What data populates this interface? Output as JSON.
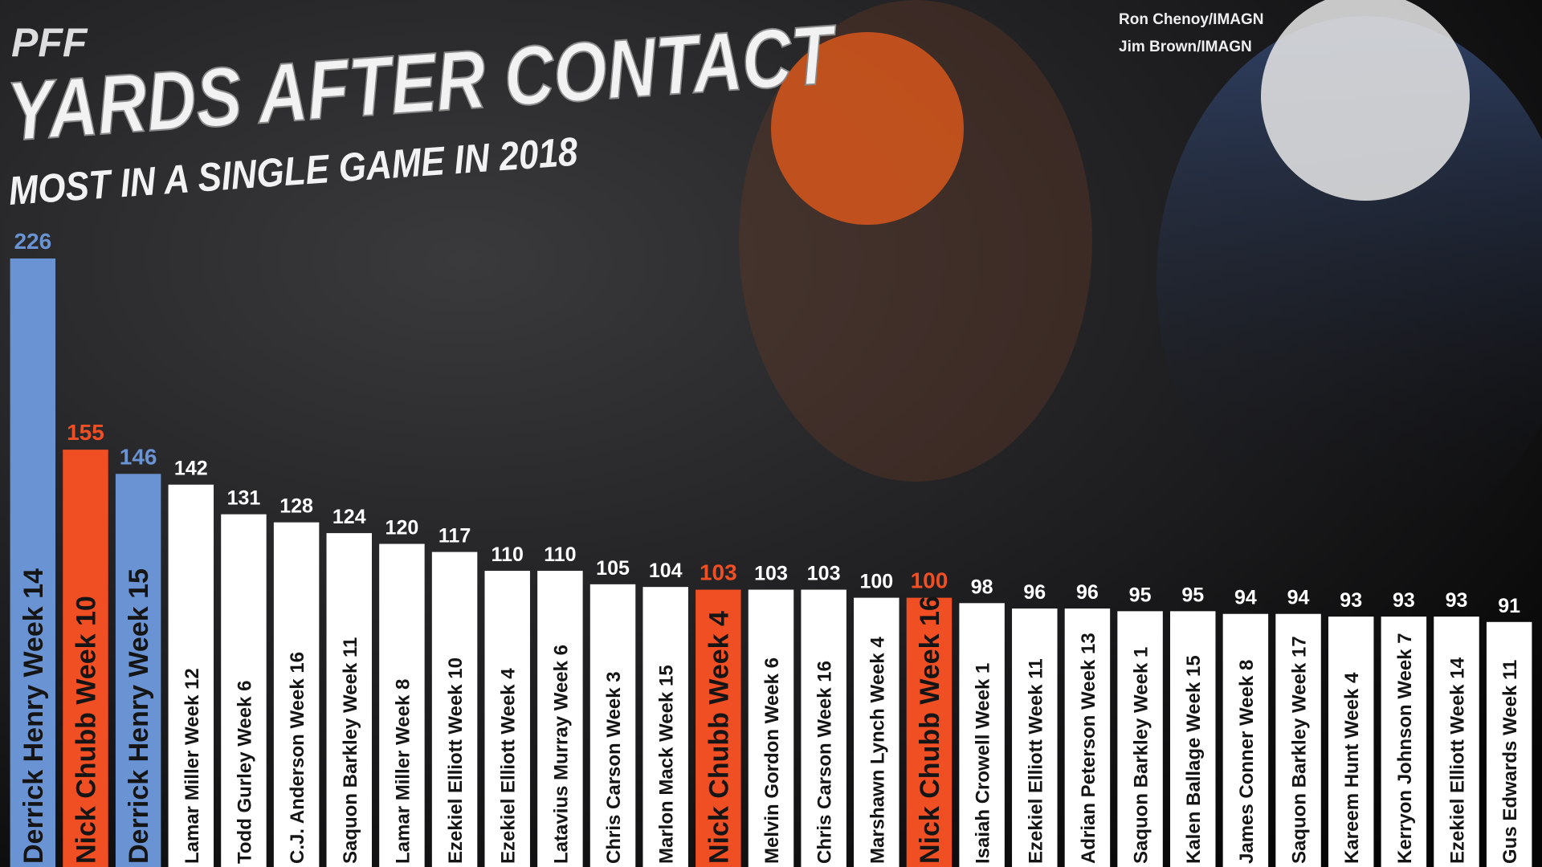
{
  "logo": "PFF",
  "credits": [
    "Ron Chenoy/IMAGN",
    "Jim Brown/IMAGN"
  ],
  "chart_data": {
    "type": "bar",
    "title": "YARDS AFTER CONTACT",
    "subtitle": "MOST IN A SINGLE GAME IN 2018",
    "categories": [
      "Derrick Henry Week 14",
      "Nick Chubb Week 10",
      "Derrick Henry Week 15",
      "Lamar Miller Week 12",
      "Todd Gurley Week 6",
      "C.J. Anderson Week 16",
      "Saquon Barkley Week 11",
      "Lamar Miller Week 8",
      "Ezekiel Elliott Week 10",
      "Ezekiel Elliott Week 4",
      "Latavius Murray Week 6",
      "Chris Carson Week 3",
      "Marlon Mack Week 15",
      "Nick Chubb Week 4",
      "Melvin Gordon Week 6",
      "Chris Carson Week 16",
      "Marshawn Lynch Week 4",
      "Nick Chubb Week 16",
      "Isaiah Crowell Week 1",
      "Ezekiel Elliott Week 11",
      "Adrian Peterson Week 13",
      "Saquon Barkley Week 1",
      "Kalen Ballage Week 15",
      "James Conner Week 8",
      "Saquon Barkley Week 17",
      "Kareem Hunt Week 4",
      "Kerryon Johnson Week 7",
      "Ezekiel Elliott Week 14",
      "Gus Edwards Week 11"
    ],
    "values": [
      226,
      155,
      146,
      142,
      131,
      128,
      124,
      120,
      117,
      110,
      110,
      105,
      104,
      103,
      103,
      103,
      100,
      100,
      98,
      96,
      96,
      95,
      95,
      94,
      94,
      93,
      93,
      93,
      91
    ],
    "colors": [
      "#6a93d4",
      "#f04e23",
      "#6a93d4",
      "#ffffff",
      "#ffffff",
      "#ffffff",
      "#ffffff",
      "#ffffff",
      "#ffffff",
      "#ffffff",
      "#ffffff",
      "#ffffff",
      "#ffffff",
      "#f04e23",
      "#ffffff",
      "#ffffff",
      "#ffffff",
      "#f04e23",
      "#ffffff",
      "#ffffff",
      "#ffffff",
      "#ffffff",
      "#ffffff",
      "#ffffff",
      "#ffffff",
      "#ffffff",
      "#ffffff",
      "#ffffff",
      "#ffffff"
    ],
    "ylim": [
      0,
      322
    ]
  }
}
